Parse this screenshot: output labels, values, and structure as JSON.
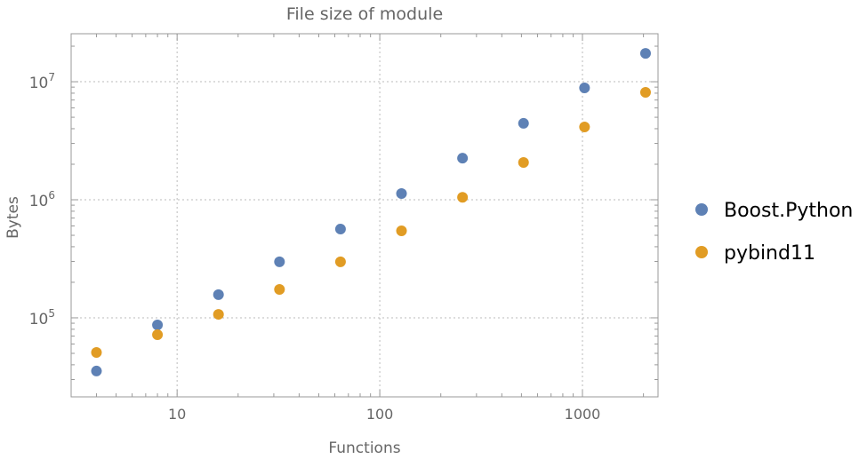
{
  "chart_data": {
    "type": "scatter",
    "title": "File size of module",
    "xlabel": "Functions",
    "ylabel": "Bytes",
    "xscale": "log",
    "yscale": "log",
    "xlim": [
      3.0,
      2360
    ],
    "ylim": [
      21400,
      25500000
    ],
    "x_ticks": [
      {
        "value": 10,
        "label": "10"
      },
      {
        "value": 100,
        "label": "100"
      },
      {
        "value": 1000,
        "label": "1000"
      }
    ],
    "y_ticks": [
      {
        "value": 100000,
        "base": "10",
        "exp": "5"
      },
      {
        "value": 1000000,
        "base": "10",
        "exp": "6"
      },
      {
        "value": 10000000,
        "base": "10",
        "exp": "7"
      }
    ],
    "grid": true,
    "legend_position": "right",
    "x": [
      4,
      8,
      16,
      32,
      64,
      128,
      256,
      512,
      1024,
      2048
    ],
    "series": [
      {
        "name": "Boost.Python",
        "color": "#5e81b5",
        "values": [
          35400,
          87000,
          157000,
          298000,
          565000,
          1130000,
          2250000,
          4440000,
          8860000,
          17400000
        ]
      },
      {
        "name": "pybind11",
        "color": "#e19c24",
        "values": [
          50900,
          71900,
          107000,
          174000,
          298000,
          546000,
          1050000,
          2070000,
          4140000,
          8130000
        ]
      }
    ]
  }
}
